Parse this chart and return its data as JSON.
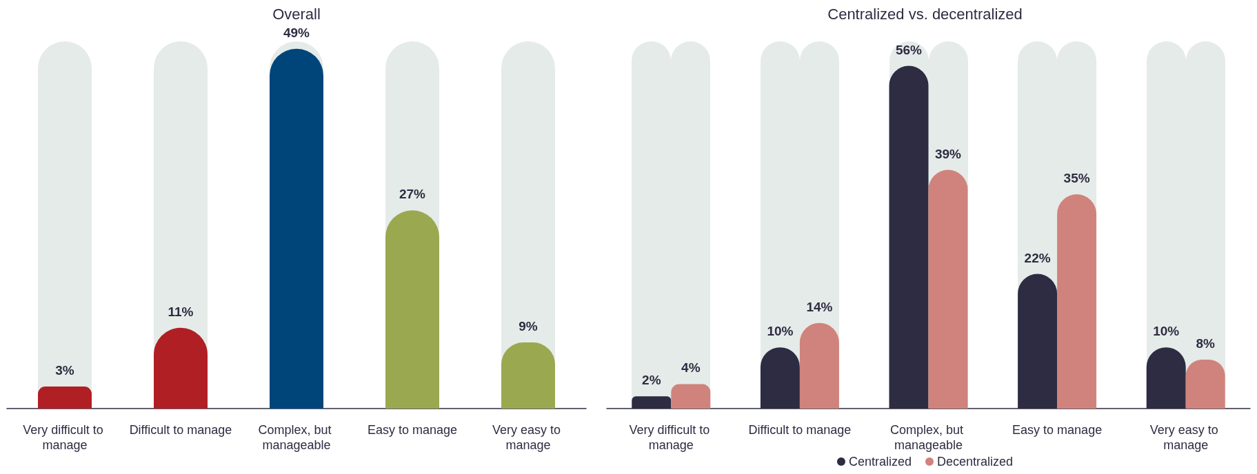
{
  "chart_data": [
    {
      "type": "bar",
      "title": "Overall",
      "categories": [
        "Very difficult to manage",
        "Difficult to manage",
        "Complex, but manageable",
        "Easy to manage",
        "Very easy to manage"
      ],
      "values": [
        3,
        11,
        49,
        27,
        9
      ],
      "value_labels": [
        "3%",
        "11%",
        "49%",
        "27%",
        "9%"
      ],
      "colors": [
        "#b01f24",
        "#b01f24",
        "#00457a",
        "#9aa850",
        "#9aa850"
      ],
      "tick_labels": "x"
    },
    {
      "type": "bar",
      "title": "Centralized vs. decentralized",
      "categories": [
        "Very difficult to manage",
        "Difficult to manage",
        "Complex, but manageable",
        "Easy to manage",
        "Very easy to manage"
      ],
      "series": [
        {
          "name": "Centralized",
          "color": "#2d2c42",
          "values": [
            2,
            10,
            56,
            22,
            10
          ],
          "value_labels": [
            "2%",
            "10%",
            "56%",
            "22%",
            "10%"
          ]
        },
        {
          "name": "Decentralized",
          "color": "#cf837c",
          "values": [
            4,
            14,
            39,
            35,
            8
          ],
          "value_labels": [
            "4%",
            "14%",
            "39%",
            "35%",
            "8%"
          ]
        }
      ],
      "tick_labels": "x",
      "legend": "bottom"
    }
  ]
}
